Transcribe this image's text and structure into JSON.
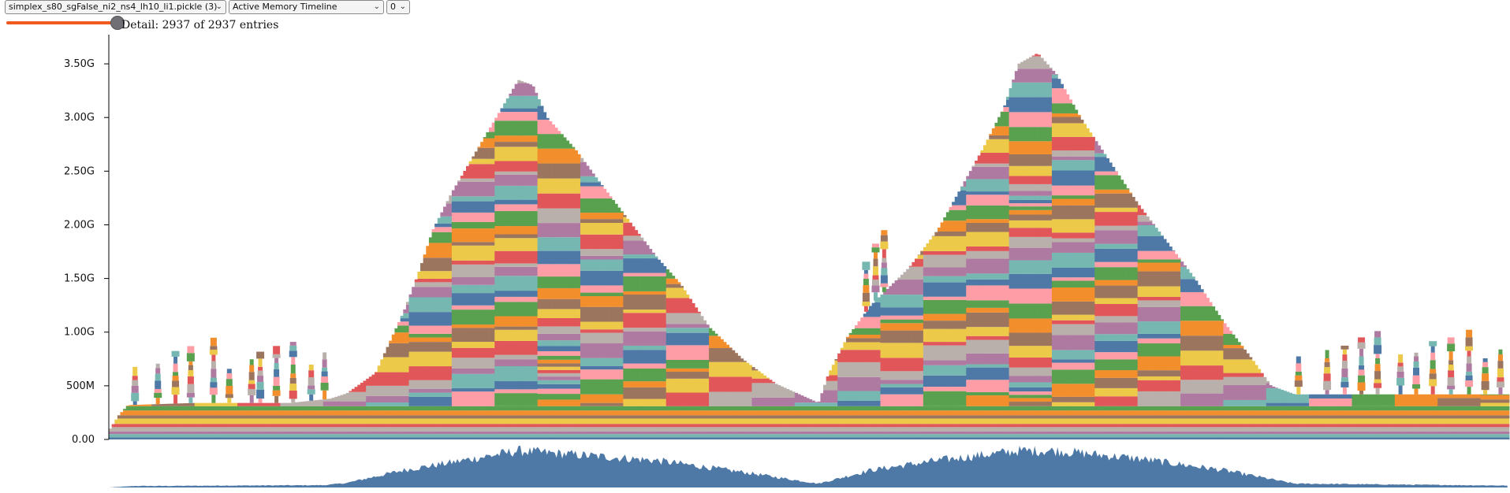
{
  "controls": {
    "file_select": "simplex_s80_sgFalse_ni2_ns4_lh10_li1.pickle (3)",
    "view_select": "Active Memory Timeline",
    "device_select": "0",
    "detail_text": "Detail: 2937 of 2937 entries",
    "detail_slider_fraction": 1.0
  },
  "chart_data": {
    "type": "area",
    "stacked": true,
    "ylim": [
      0,
      3.75
    ],
    "y_unit": "GB",
    "y_ticks": [
      {
        "value": 0.0,
        "label": "0.00"
      },
      {
        "value": 0.5,
        "label": "500M"
      },
      {
        "value": 1.0,
        "label": "1.00G"
      },
      {
        "value": 1.5,
        "label": "1.50G"
      },
      {
        "value": 2.0,
        "label": "2.00G"
      },
      {
        "value": 2.5,
        "label": "2.50G"
      },
      {
        "value": 3.0,
        "label": "3.00G"
      },
      {
        "value": 3.5,
        "label": "3.50G"
      }
    ],
    "x_range": [
      0,
      2937
    ],
    "profile": [
      [
        0,
        0.08
      ],
      [
        20,
        0.22
      ],
      [
        40,
        0.32
      ],
      [
        180,
        0.34
      ],
      [
        380,
        0.34
      ],
      [
        465,
        0.38
      ],
      [
        500,
        0.43
      ],
      [
        560,
        0.62
      ],
      [
        620,
        1.2
      ],
      [
        650,
        1.55
      ],
      [
        680,
        1.95
      ],
      [
        720,
        2.3
      ],
      [
        780,
        2.75
      ],
      [
        820,
        3.05
      ],
      [
        860,
        3.35
      ],
      [
        890,
        3.3
      ],
      [
        920,
        3.0
      ],
      [
        980,
        2.7
      ],
      [
        1030,
        2.4
      ],
      [
        1090,
        2.05
      ],
      [
        1150,
        1.7
      ],
      [
        1200,
        1.45
      ],
      [
        1260,
        1.05
      ],
      [
        1330,
        0.75
      ],
      [
        1400,
        0.52
      ],
      [
        1450,
        0.42
      ],
      [
        1490,
        0.34
      ],
      [
        1510,
        0.6
      ],
      [
        1550,
        0.95
      ],
      [
        1600,
        1.25
      ],
      [
        1680,
        1.6
      ],
      [
        1740,
        1.95
      ],
      [
        1790,
        2.35
      ],
      [
        1840,
        2.75
      ],
      [
        1880,
        3.1
      ],
      [
        1910,
        3.5
      ],
      [
        1950,
        3.6
      ],
      [
        1990,
        3.4
      ],
      [
        2040,
        3.0
      ],
      [
        2100,
        2.6
      ],
      [
        2160,
        2.2
      ],
      [
        2220,
        1.85
      ],
      [
        2280,
        1.5
      ],
      [
        2340,
        1.1
      ],
      [
        2400,
        0.75
      ],
      [
        2440,
        0.5
      ],
      [
        2490,
        0.42
      ],
      [
        2937,
        0.42
      ]
    ],
    "spike_positions": [
      55,
      103,
      140,
      172,
      220,
      253,
      300,
      318,
      352,
      387,
      425,
      453,
      1590,
      1610,
      1628,
      2498,
      2558,
      2595,
      2630,
      2664,
      2712,
      2745,
      2780,
      2818,
      2856,
      2890,
      2922
    ],
    "overview": {
      "type": "area",
      "color": "#4e79a7",
      "profile": [
        [
          0,
          0.0
        ],
        [
          55,
          0.04
        ],
        [
          103,
          0.04
        ],
        [
          253,
          0.05
        ],
        [
          453,
          0.06
        ],
        [
          500,
          0.12
        ],
        [
          620,
          0.45
        ],
        [
          720,
          0.65
        ],
        [
          860,
          0.95
        ],
        [
          980,
          0.85
        ],
        [
          1150,
          0.7
        ],
        [
          1330,
          0.4
        ],
        [
          1490,
          0.1
        ],
        [
          1600,
          0.45
        ],
        [
          1740,
          0.7
        ],
        [
          1910,
          0.95
        ],
        [
          1990,
          0.95
        ],
        [
          2160,
          0.75
        ],
        [
          2340,
          0.45
        ],
        [
          2490,
          0.1
        ],
        [
          2937,
          0.05
        ]
      ]
    },
    "palette": [
      "#4e79a7",
      "#f28e2c",
      "#e15759",
      "#76b7b2",
      "#59a14f",
      "#edc949",
      "#af7aa1",
      "#ff9da7",
      "#9c755f",
      "#bab0ab"
    ]
  }
}
